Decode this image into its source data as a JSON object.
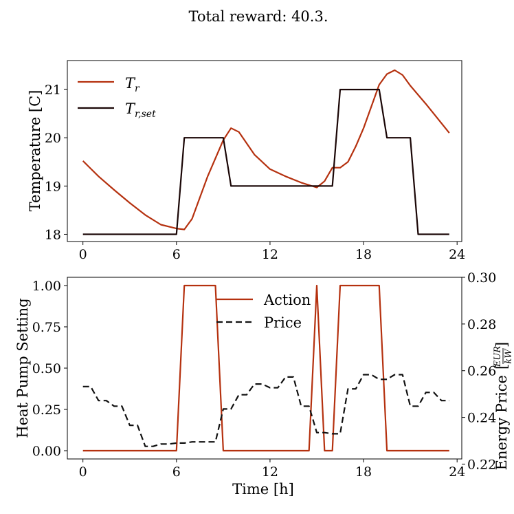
{
  "title": "Total reward: 40.3.",
  "colors": {
    "action": "#b5310f",
    "setpoint": "#1a0606",
    "price": "#111111",
    "temperature": "#b5310f"
  },
  "chart_data": [
    {
      "type": "line",
      "ylabel": "Temperature [C]",
      "xlim": [
        -1,
        24.3
      ],
      "ylim": [
        17.85,
        21.6
      ],
      "xticks": [
        "0",
        "6",
        "12",
        "18",
        "24"
      ],
      "yticks": [
        "18",
        "19",
        "20",
        "21"
      ],
      "legend_position": "top-left",
      "series": [
        {
          "name": "T_r",
          "label_main": "T",
          "label_sub": "r",
          "color_key": "temperature",
          "x": [
            0,
            1,
            2,
            3,
            4,
            5,
            6,
            6.5,
            7,
            8,
            9,
            9.5,
            10,
            11,
            12,
            13,
            14,
            15,
            15.5,
            16,
            16.5,
            17,
            17.5,
            18,
            19,
            19.5,
            20,
            20.5,
            21,
            22,
            23,
            23.5
          ],
          "y": [
            19.52,
            19.2,
            18.92,
            18.65,
            18.4,
            18.2,
            18.12,
            18.1,
            18.32,
            19.2,
            19.95,
            20.2,
            20.12,
            19.65,
            19.35,
            19.2,
            19.07,
            18.97,
            19.1,
            19.38,
            19.38,
            19.5,
            19.82,
            20.2,
            21.1,
            21.32,
            21.4,
            21.3,
            21.08,
            20.7,
            20.3,
            20.1
          ]
        },
        {
          "name": "T_r,set",
          "label_main": "T",
          "label_sub": "r,set",
          "color_key": "setpoint",
          "x": [
            0,
            6,
            6.5,
            9,
            9.5,
            15,
            16,
            16.5,
            19,
            19.5,
            21,
            21.5,
            23.5
          ],
          "y": [
            18,
            18,
            20,
            20,
            19,
            19,
            19,
            21,
            21,
            20,
            20,
            18,
            18
          ]
        }
      ]
    },
    {
      "type": "line",
      "xlabel": "Time [h]",
      "ylabel": "Heat Pump Setting",
      "ylabel_right_text": "Energy Price",
      "ylabel_right_frac_num": "EUR",
      "ylabel_right_frac_den": "kW",
      "xlim": [
        -1,
        24.3
      ],
      "ylim": [
        -0.05,
        1.05
      ],
      "ylim_right": [
        0.2222,
        0.3
      ],
      "xticks": [
        "0",
        "6",
        "12",
        "18",
        "24"
      ],
      "yticks": [
        "0.00",
        "0.25",
        "0.50",
        "0.75",
        "1.00"
      ],
      "yticks_right": [
        "0.22",
        "0.24",
        "0.26",
        "0.28",
        "0.30"
      ],
      "legend_position": "top-center",
      "series": [
        {
          "name": "Action",
          "axis": "left",
          "style": "solid",
          "color_key": "action",
          "x": [
            0,
            6,
            6.5,
            8.5,
            9,
            14.5,
            15,
            15.5,
            16,
            16.5,
            19,
            19.5,
            23.5
          ],
          "y": [
            0,
            0,
            1,
            1,
            0,
            0,
            1,
            0,
            0,
            1,
            1,
            0,
            0
          ]
        },
        {
          "name": "Price",
          "axis": "right",
          "style": "dashed",
          "color_key": "price",
          "x": [
            0,
            0.5,
            1,
            1.5,
            2,
            2.5,
            3,
            3.5,
            4,
            4.5,
            5,
            5.5,
            6,
            6.5,
            7,
            7.5,
            8,
            8.5,
            9,
            9.5,
            10,
            10.5,
            11,
            11.5,
            12,
            12.5,
            13,
            13.5,
            14,
            14.5,
            15,
            15.5,
            16,
            16.5,
            17,
            17.5,
            18,
            18.5,
            19,
            19.5,
            20,
            20.5,
            21,
            21.5,
            22,
            22.5,
            23,
            23.5
          ],
          "y": [
            0.2532,
            0.2532,
            0.2472,
            0.2472,
            0.2448,
            0.2448,
            0.2366,
            0.2366,
            0.2276,
            0.2276,
            0.2286,
            0.2286,
            0.229,
            0.229,
            0.2295,
            0.2295,
            0.2295,
            0.2295,
            0.2436,
            0.2436,
            0.2497,
            0.2497,
            0.2543,
            0.2543,
            0.2527,
            0.2527,
            0.2573,
            0.2573,
            0.2448,
            0.2448,
            0.2335,
            0.2335,
            0.233,
            0.233,
            0.2522,
            0.2522,
            0.2583,
            0.2583,
            0.2563,
            0.2563,
            0.2583,
            0.2583,
            0.2448,
            0.2448,
            0.2507,
            0.2507,
            0.2472,
            0.2472
          ]
        }
      ]
    }
  ]
}
